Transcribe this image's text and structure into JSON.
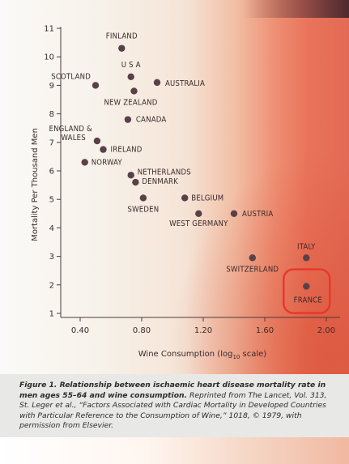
{
  "chart_data": {
    "type": "scatter",
    "xlabel_main": "Wine Consumption (log",
    "xlabel_sub": "10",
    "xlabel_tail": " scale)",
    "ylabel": "Mortality Per Thousand Men",
    "xlim": [
      0.3,
      2.03
    ],
    "ylim": [
      0.6,
      11.0
    ],
    "x_ticks": [
      "0.40",
      "0.80",
      "1.20",
      "1.60",
      "2.00"
    ],
    "y_ticks": [
      "1",
      "2",
      "3",
      "4",
      "5",
      "6",
      "7",
      "8",
      "9",
      "10",
      "11"
    ],
    "points": [
      {
        "label": "FINLAND",
        "x": 0.67,
        "y": 10.3
      },
      {
        "label": "U S A",
        "x": 0.73,
        "y": 9.3
      },
      {
        "label": "SCOTLAND",
        "x": 0.5,
        "y": 9.0
      },
      {
        "label": "AUSTRALIA",
        "x": 0.9,
        "y": 9.1
      },
      {
        "label": "NEW ZEALAND",
        "x": 0.75,
        "y": 8.8
      },
      {
        "label": "CANADA",
        "x": 0.71,
        "y": 7.8
      },
      {
        "label": "ENGLAND & WALES",
        "x": 0.51,
        "y": 7.05
      },
      {
        "label": "IRELAND",
        "x": 0.55,
        "y": 6.75
      },
      {
        "label": "NORWAY",
        "x": 0.43,
        "y": 6.3
      },
      {
        "label": "NETHERLANDS",
        "x": 0.73,
        "y": 5.85
      },
      {
        "label": "DENMARK",
        "x": 0.76,
        "y": 5.6
      },
      {
        "label": "SWEDEN",
        "x": 0.81,
        "y": 5.05
      },
      {
        "label": "BELGIUM",
        "x": 1.08,
        "y": 5.05
      },
      {
        "label": "WEST GERMANY",
        "x": 1.17,
        "y": 4.5
      },
      {
        "label": "AUSTRIA",
        "x": 1.4,
        "y": 4.5
      },
      {
        "label": "SWITZERLAND",
        "x": 1.52,
        "y": 2.95
      },
      {
        "label": "ITALY",
        "x": 1.87,
        "y": 2.95
      },
      {
        "label": "FRANCE",
        "x": 1.87,
        "y": 1.95
      }
    ],
    "highlight": "FRANCE",
    "highlight_color": "#e8362b",
    "point_color": "#5a4048"
  },
  "caption": {
    "bold": "Figure 1. Relationship between ischaemic heart disease mortality rate in men ages 55–64 and wine consumption.",
    "rest": " Reprinted from The Lancet, Vol. 313, St. Leger et al., “Factors Associated with Cardiac Mortality in Developed Countries with Particular Reference to the Consumption of Wine,” 1018, © 1979, with permission from Elsevier."
  }
}
